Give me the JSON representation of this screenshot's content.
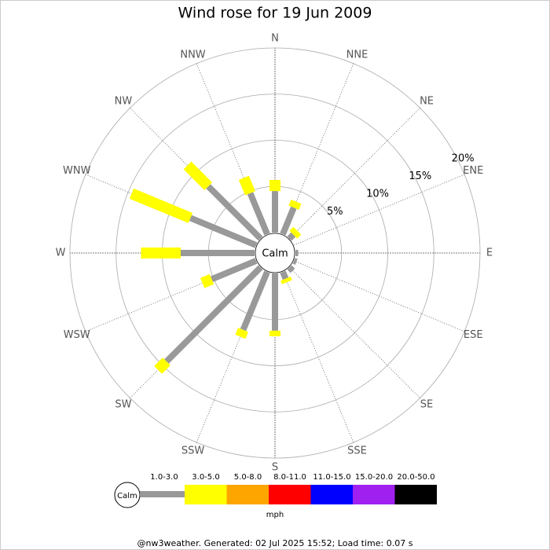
{
  "chart_data": {
    "type": "windrose",
    "title": "Wind rose for 19 Jun 2009",
    "categories": [
      "N",
      "NNE",
      "NE",
      "ENE",
      "E",
      "ESE",
      "SE",
      "SSE",
      "S",
      "SSW",
      "SW",
      "WSW",
      "W",
      "WNW",
      "NW",
      "NNW"
    ],
    "series": [
      {
        "name": "1.0-3.0",
        "color": "#999999",
        "values": [
          4.5,
          3.1,
          0.6,
          0,
          0.3,
          0.3,
          0.5,
          0.8,
          6.2,
          6.8,
          14.4,
          5.2,
          8.0,
          7.7,
          8.0,
          4.8
        ]
      },
      {
        "name": "3.0-5.0",
        "color": "#ffff00",
        "values": [
          1.2,
          0.7,
          0.6,
          0,
          0,
          0,
          0,
          0.4,
          0.6,
          0.8,
          1.3,
          1.1,
          4.3,
          6.9,
          3.2,
          1.8
        ]
      },
      {
        "name": "5.0-8.0",
        "color": "#ffa500",
        "values": [
          0,
          0,
          0,
          0,
          0,
          0,
          0,
          0,
          0,
          0,
          0,
          0,
          0,
          0,
          0,
          0
        ]
      },
      {
        "name": "8.0-11.0",
        "color": "#ff0000",
        "values": [
          0,
          0,
          0,
          0,
          0,
          0,
          0,
          0,
          0,
          0,
          0,
          0,
          0,
          0,
          0,
          0
        ]
      },
      {
        "name": "11.0-15.0",
        "color": "#0000ff",
        "values": [
          0,
          0,
          0,
          0,
          0,
          0,
          0,
          0,
          0,
          0,
          0,
          0,
          0,
          0,
          0,
          0
        ]
      },
      {
        "name": "15.0-20.0",
        "color": "#a020f0",
        "values": [
          0,
          0,
          0,
          0,
          0,
          0,
          0,
          0,
          0,
          0,
          0,
          0,
          0,
          0,
          0,
          0
        ]
      },
      {
        "name": "20.0-50.0",
        "color": "#000000",
        "values": [
          0,
          0,
          0,
          0,
          0,
          0,
          0,
          0,
          0,
          0,
          0,
          0,
          0,
          0,
          0,
          0
        ]
      }
    ],
    "rlim": [
      0,
      20
    ],
    "rticks": [
      {
        "value": 5,
        "label": "5%"
      },
      {
        "value": 10,
        "label": "10%"
      },
      {
        "value": 15,
        "label": "15%"
      },
      {
        "value": 20,
        "label": "20%"
      }
    ],
    "calm_label": "Calm",
    "unit": "mph",
    "footer": "@nw3weather. Generated: 02 Jul 2025 15:52; Load time: 0.07 s"
  }
}
